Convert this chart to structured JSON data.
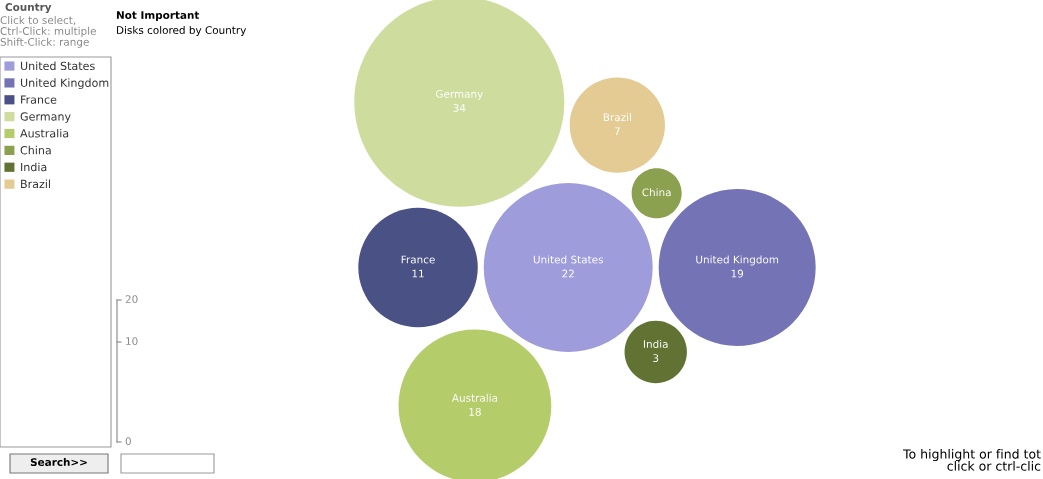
{
  "chart_data": {
    "type": "other",
    "title": "Not Important",
    "subtitle": "Disks colored by Country",
    "legend_title": "Country",
    "legend": "top left",
    "data_labels": true,
    "series": [
      {
        "name": "United States",
        "color": "#9f9cdb",
        "values": [
          22
        ]
      },
      {
        "name": "United Kingdom",
        "color": "#7473b5",
        "values": [
          19
        ]
      },
      {
        "name": "France",
        "color": "#4a5184",
        "values": [
          11
        ]
      },
      {
        "name": "Germany",
        "color": "#cedc9e",
        "values": [
          34
        ]
      },
      {
        "name": "Australia",
        "color": "#b5cc6a",
        "values": [
          18
        ]
      },
      {
        "name": "China",
        "color": "#8ca150",
        "values": [
          null
        ]
      },
      {
        "name": "India",
        "color": "#627233",
        "values": [
          3
        ]
      },
      {
        "name": "Brazil",
        "color": "#e3cb93",
        "values": [
          7
        ]
      }
    ],
    "annotations": [
      "Click to select,\nCtrl-Click: multiple\nShift-Click: range",
      "Search>>",
      "To highlight or find tot\nclick or ctrl-clic",
      "20",
      "10",
      "0"
    ]
  }
}
